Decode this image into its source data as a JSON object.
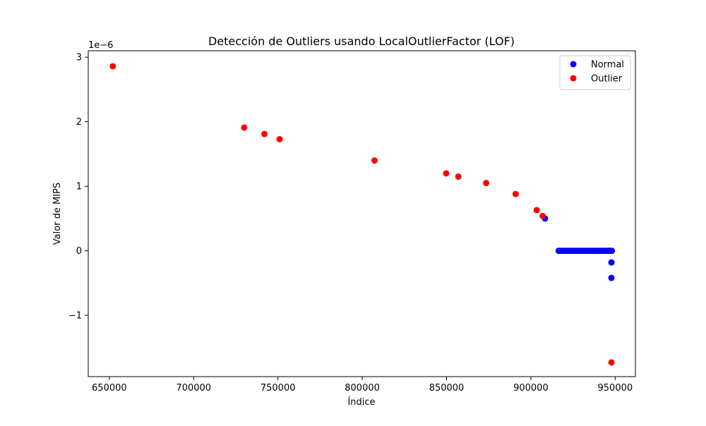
{
  "chart_data": {
    "type": "scatter",
    "title": "Detección de Outliers usando LocalOutlierFactor (LOF)",
    "xlabel": "Índice",
    "ylabel": "Valor de MIPS",
    "y_offset_label": "1e−6",
    "xlim": [
      637500,
      962000
    ],
    "ylim": [
      -1.95e-06,
      3.1e-06
    ],
    "x_ticks": [
      650000,
      700000,
      750000,
      800000,
      850000,
      900000,
      950000
    ],
    "x_tick_labels": [
      "650000",
      "700000",
      "750000",
      "800000",
      "850000",
      "900000",
      "950000"
    ],
    "y_ticks": [
      -1e-06,
      0,
      1e-06,
      2e-06,
      3e-06
    ],
    "y_tick_labels": [
      "−1",
      "0",
      "1",
      "2",
      "3"
    ],
    "grid": false,
    "legend_position": "top-right",
    "series": [
      {
        "name": "Normal",
        "color": "#0000ff",
        "points": [
          [
            908400,
            5e-07
          ],
          [
            947800,
            -1.8e-07
          ],
          [
            947800,
            -4.2e-07
          ],
          [
            916500,
            0
          ],
          [
            917500,
            0
          ],
          [
            918500,
            0
          ],
          [
            919500,
            0
          ],
          [
            920500,
            0
          ],
          [
            921500,
            0
          ],
          [
            922500,
            0
          ],
          [
            923500,
            0
          ],
          [
            924500,
            0
          ],
          [
            925500,
            0
          ],
          [
            926500,
            0
          ],
          [
            927500,
            0
          ],
          [
            928500,
            0
          ],
          [
            929500,
            0
          ],
          [
            930500,
            0
          ],
          [
            931500,
            0
          ],
          [
            932500,
            0
          ],
          [
            933500,
            0
          ],
          [
            934500,
            0
          ],
          [
            935500,
            0
          ],
          [
            936500,
            0
          ],
          [
            937500,
            0
          ],
          [
            938500,
            0
          ],
          [
            939500,
            0
          ],
          [
            940500,
            0
          ],
          [
            941500,
            0
          ],
          [
            942500,
            0
          ],
          [
            943500,
            0
          ],
          [
            944500,
            0
          ],
          [
            945500,
            0
          ],
          [
            946500,
            0
          ],
          [
            947500,
            0
          ],
          [
            948000,
            0
          ]
        ]
      },
      {
        "name": "Outlier",
        "color": "#ff0000",
        "points": [
          [
            652100,
            2.86e-06
          ],
          [
            730000,
            1.91e-06
          ],
          [
            742000,
            1.81e-06
          ],
          [
            751000,
            1.73e-06
          ],
          [
            807300,
            1.4e-06
          ],
          [
            849800,
            1.2e-06
          ],
          [
            857000,
            1.15e-06
          ],
          [
            873500,
            1.05e-06
          ],
          [
            891000,
            8.8e-07
          ],
          [
            903500,
            6.3e-07
          ],
          [
            907000,
            5.4e-07
          ],
          [
            947800,
            -1.73e-06
          ]
        ]
      }
    ]
  }
}
